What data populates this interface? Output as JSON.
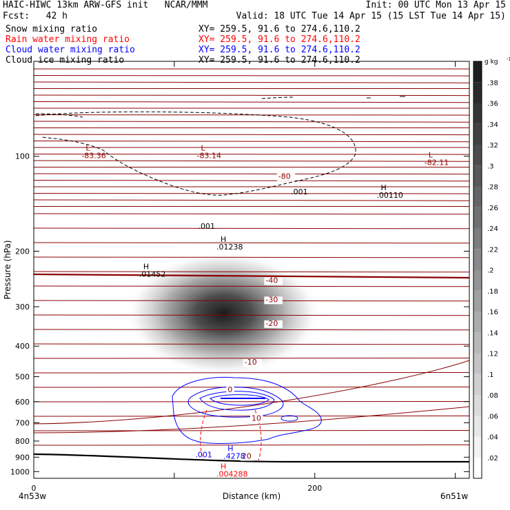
{
  "header": {
    "line1_left": "HAIC-HIWC 13km ARW-GFS init   NCAR/MMM",
    "line1_right": "Init: 00 UTC Mon 13 Apr 15",
    "line2_left": "Fcst:   42 h",
    "line2_right": "Valid: 18 UTC Tue 14 Apr 15 (15 LST Tue 14 Apr 15)",
    "fields": [
      {
        "name": "Snow mixing ratio",
        "xy": "XY= 259.5, 91.6 to 274.6,110.2",
        "color": "#000000"
      },
      {
        "name": "Rain water mixing ratio",
        "xy": "XY= 259.5, 91.6 to 274.6,110.2",
        "color": "#ff0000"
      },
      {
        "name": "Cloud water mixing ratio",
        "xy": "XY= 259.5, 91.6 to 274.6,110.2",
        "color": "#0000ff"
      },
      {
        "name": "Cloud ice mixing ratio",
        "xy": "XY= 259.5, 91.6 to 274.6,110.2",
        "color": "#000000"
      }
    ]
  },
  "chart_data": {
    "type": "cross-section",
    "xlabel": "Distance (km)",
    "ylabel": "Pressure (hPa)",
    "xlim": [
      0,
      310
    ],
    "ylim": [
      1050,
      50
    ],
    "y_scale": "log",
    "x_ticks": [
      0,
      100,
      200,
      300
    ],
    "x_tick_labels": [
      "0",
      "",
      "200",
      ""
    ],
    "y_ticks": [
      100,
      200,
      300,
      400,
      500,
      600,
      700,
      800,
      900,
      1000
    ],
    "x_end_labels": [
      "4n53w",
      "6n51w"
    ],
    "colorbar": {
      "unit": "g kg",
      "unit_superscript": "-1",
      "levels": [
        ".02",
        ".04",
        ".06",
        ".08",
        ".1",
        ".12",
        ".14",
        ".16",
        ".18",
        ".2",
        ".22",
        ".24",
        ".26",
        ".28",
        ".3",
        ".32",
        ".34",
        ".36",
        ".38"
      ]
    },
    "snow_max": {
      "x": 135,
      "p": 300,
      "value": 0.38
    },
    "isotherm_labels": [
      {
        "text": "-80",
        "x": 174,
        "p": 118
      },
      {
        "text": "-40",
        "x": 165,
        "p": 252
      },
      {
        "text": "-30",
        "x": 165,
        "p": 290
      },
      {
        "text": "-20",
        "x": 165,
        "p": 345
      },
      {
        "text": "-10",
        "x": 150,
        "p": 458
      },
      {
        "text": "0",
        "x": 138,
        "p": 560
      },
      {
        "text": "10",
        "x": 155,
        "p": 690
      },
      {
        "text": "20",
        "x": 148,
        "p": 910
      }
    ],
    "extrema_labels": [
      {
        "mark": "L",
        "value": "-83.36",
        "x": 34,
        "p": 96,
        "color": "#8b0000"
      },
      {
        "mark": "L",
        "value": "-83.14",
        "x": 116,
        "p": 96,
        "color": "#8b0000"
      },
      {
        "mark": "L",
        "value": "-82.11",
        "x": 278,
        "p": 101,
        "color": "#8b0000"
      },
      {
        "mark": "H",
        "value": ".00110",
        "x": 244,
        "p": 128,
        "color": "#000000"
      },
      {
        "mark": "H",
        "value": ".01238",
        "x": 130,
        "p": 187,
        "color": "#000000"
      },
      {
        "mark": "H",
        "value": ".01452",
        "x": 75,
        "p": 228,
        "color": "#000000"
      },
      {
        "mark": "H",
        "value": ".4278",
        "x": 135,
        "p": 860,
        "color": "#0000ff"
      },
      {
        "mark": "H",
        "value": ".004288",
        "x": 130,
        "p": 980,
        "color": "#ff0000"
      }
    ],
    "contour_labels": [
      {
        "text": ".001",
        "x": 117,
        "p": 170,
        "color": "#000000"
      },
      {
        "text": ".001",
        "x": 183,
        "p": 132,
        "color": "#000000"
      },
      {
        "text": ".001",
        "x": 115,
        "p": 900,
        "color": "#0000ff"
      }
    ],
    "colors": {
      "isotherm": "#8b0000",
      "snow_contour": "#000000",
      "cloud_water": "#0000ff",
      "rain_water": "#ff0000",
      "terrain": "#000000"
    }
  }
}
